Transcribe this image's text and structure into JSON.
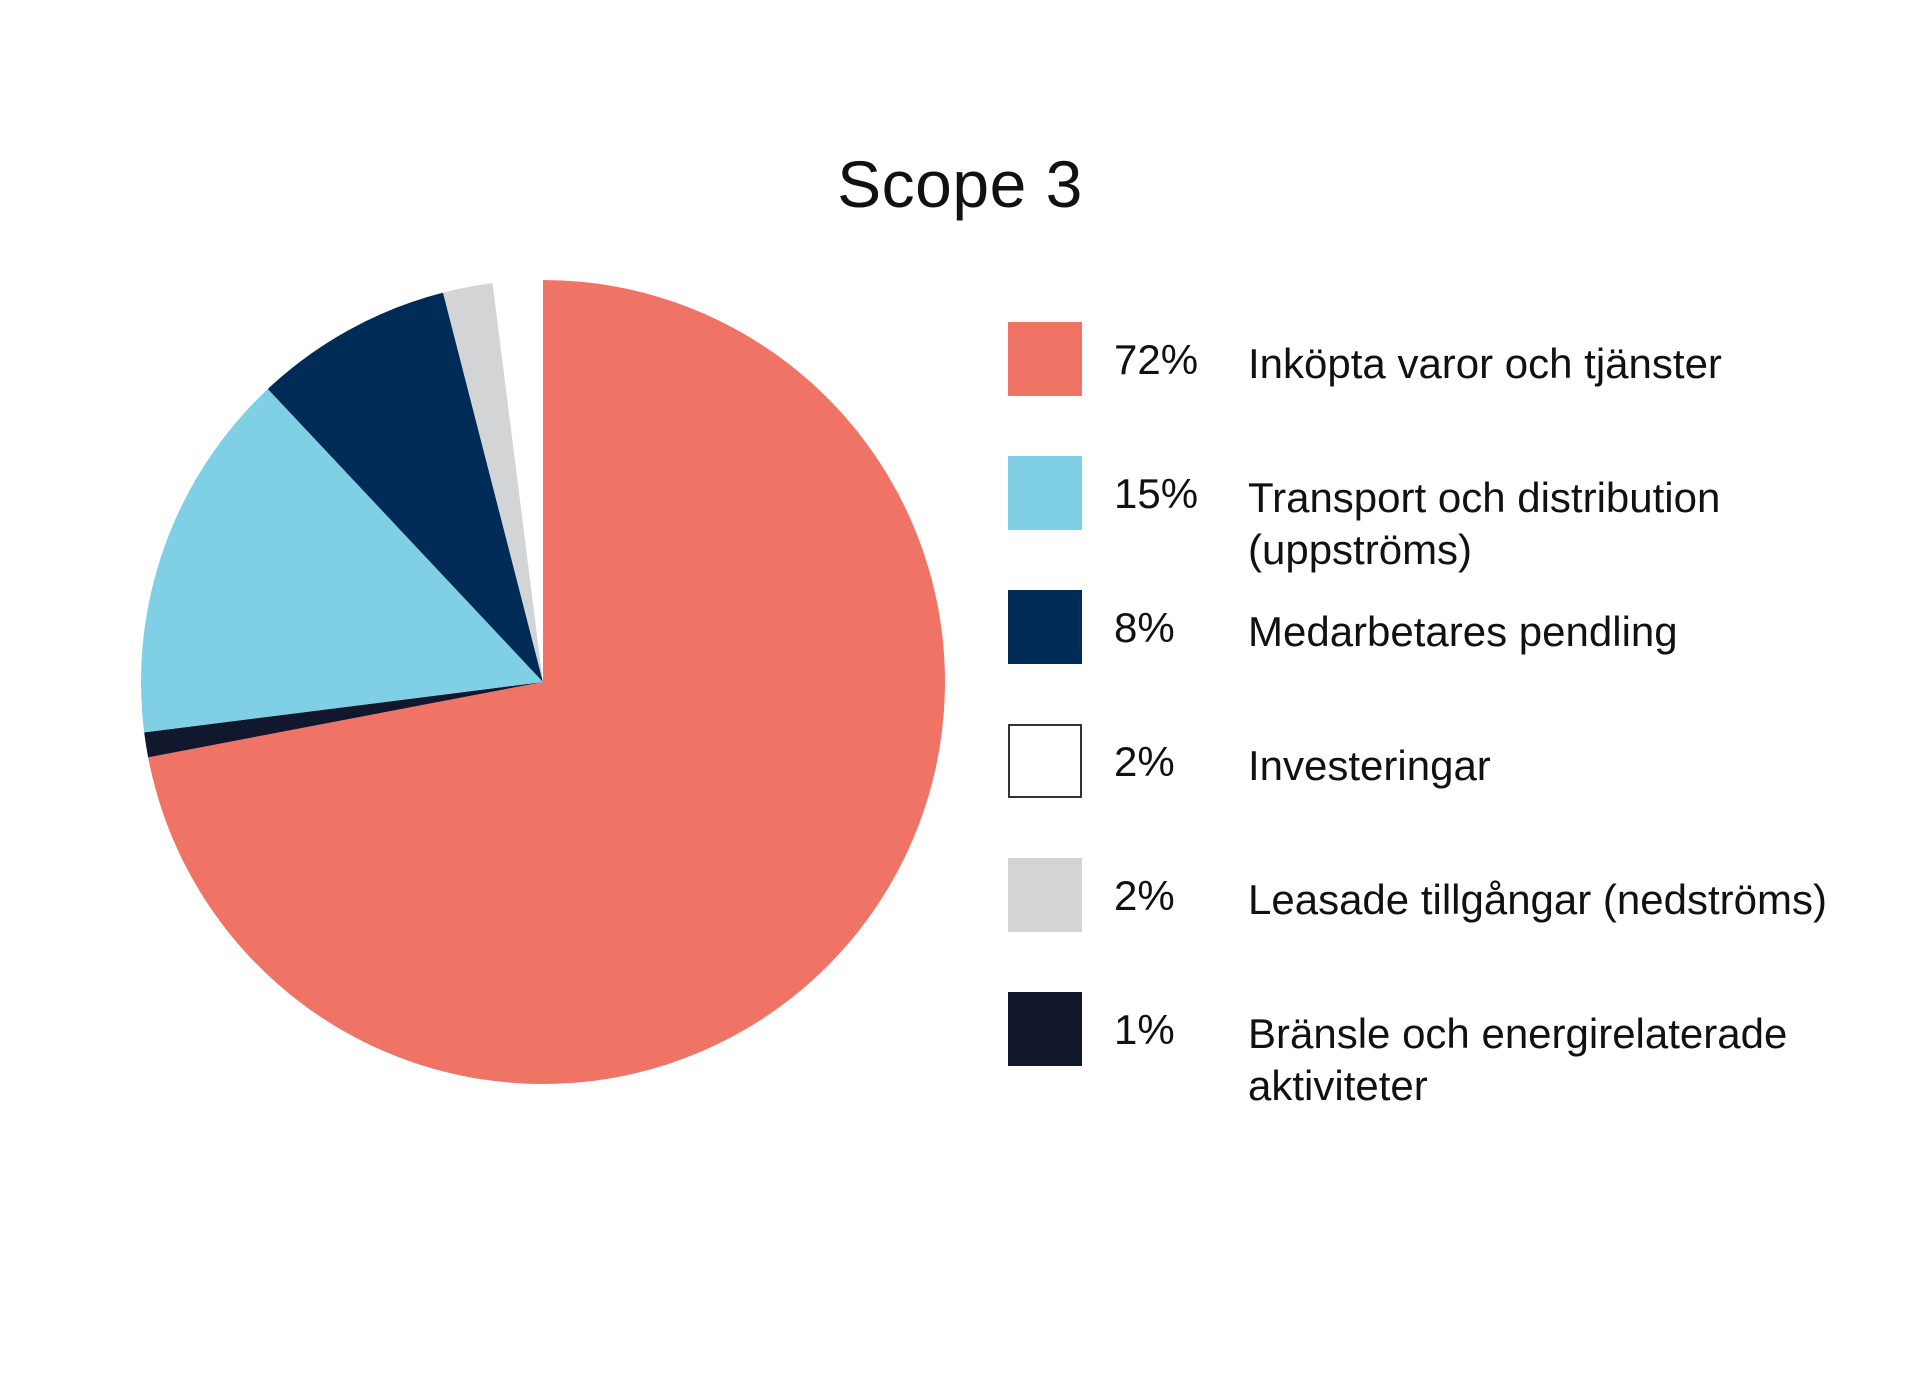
{
  "chart_data": {
    "type": "pie",
    "title": "Scope 3",
    "slices": [
      {
        "label": "Inköpta varor och tjänster",
        "pct_label": "72%",
        "value": 72,
        "color": "#f07466"
      },
      {
        "label": "Bränsle och energirelaterade\naktiviteter",
        "pct_label": "1%",
        "value": 1,
        "color": "#11182e"
      },
      {
        "label": "Transport och distribution\n(uppströms)",
        "pct_label": "15%",
        "value": 15,
        "color": "#7fd0e4"
      },
      {
        "label": "Medarbetares pendling",
        "pct_label": "8%",
        "value": 8,
        "color": "#002b57"
      },
      {
        "label": "Leasade tillgångar (nedströms)",
        "pct_label": "2%",
        "value": 2,
        "color": "#d3d4d6"
      },
      {
        "label": "Investeringar",
        "pct_label": "2%",
        "value": 2,
        "color": "#ffffff"
      }
    ],
    "legend": [
      {
        "pct_label": "72%",
        "label": "Inköpta varor och tjänster",
        "color": "#f07466"
      },
      {
        "pct_label": "15%",
        "label": "Transport och distribution\n(uppströms)",
        "color": "#7fd0e4"
      },
      {
        "pct_label": "8%",
        "label": "Medarbetares pendling",
        "color": "#002b57"
      },
      {
        "pct_label": "2%",
        "label": "Investeringar",
        "color": "#ffffff"
      },
      {
        "pct_label": "2%",
        "label": "Leasade tillgångar (nedströms)",
        "color": "#d3d4d6"
      },
      {
        "pct_label": "1%",
        "label": "Bränsle och energirelaterade\naktiviteter",
        "color": "#11182e"
      }
    ],
    "legend_placement": "right"
  }
}
